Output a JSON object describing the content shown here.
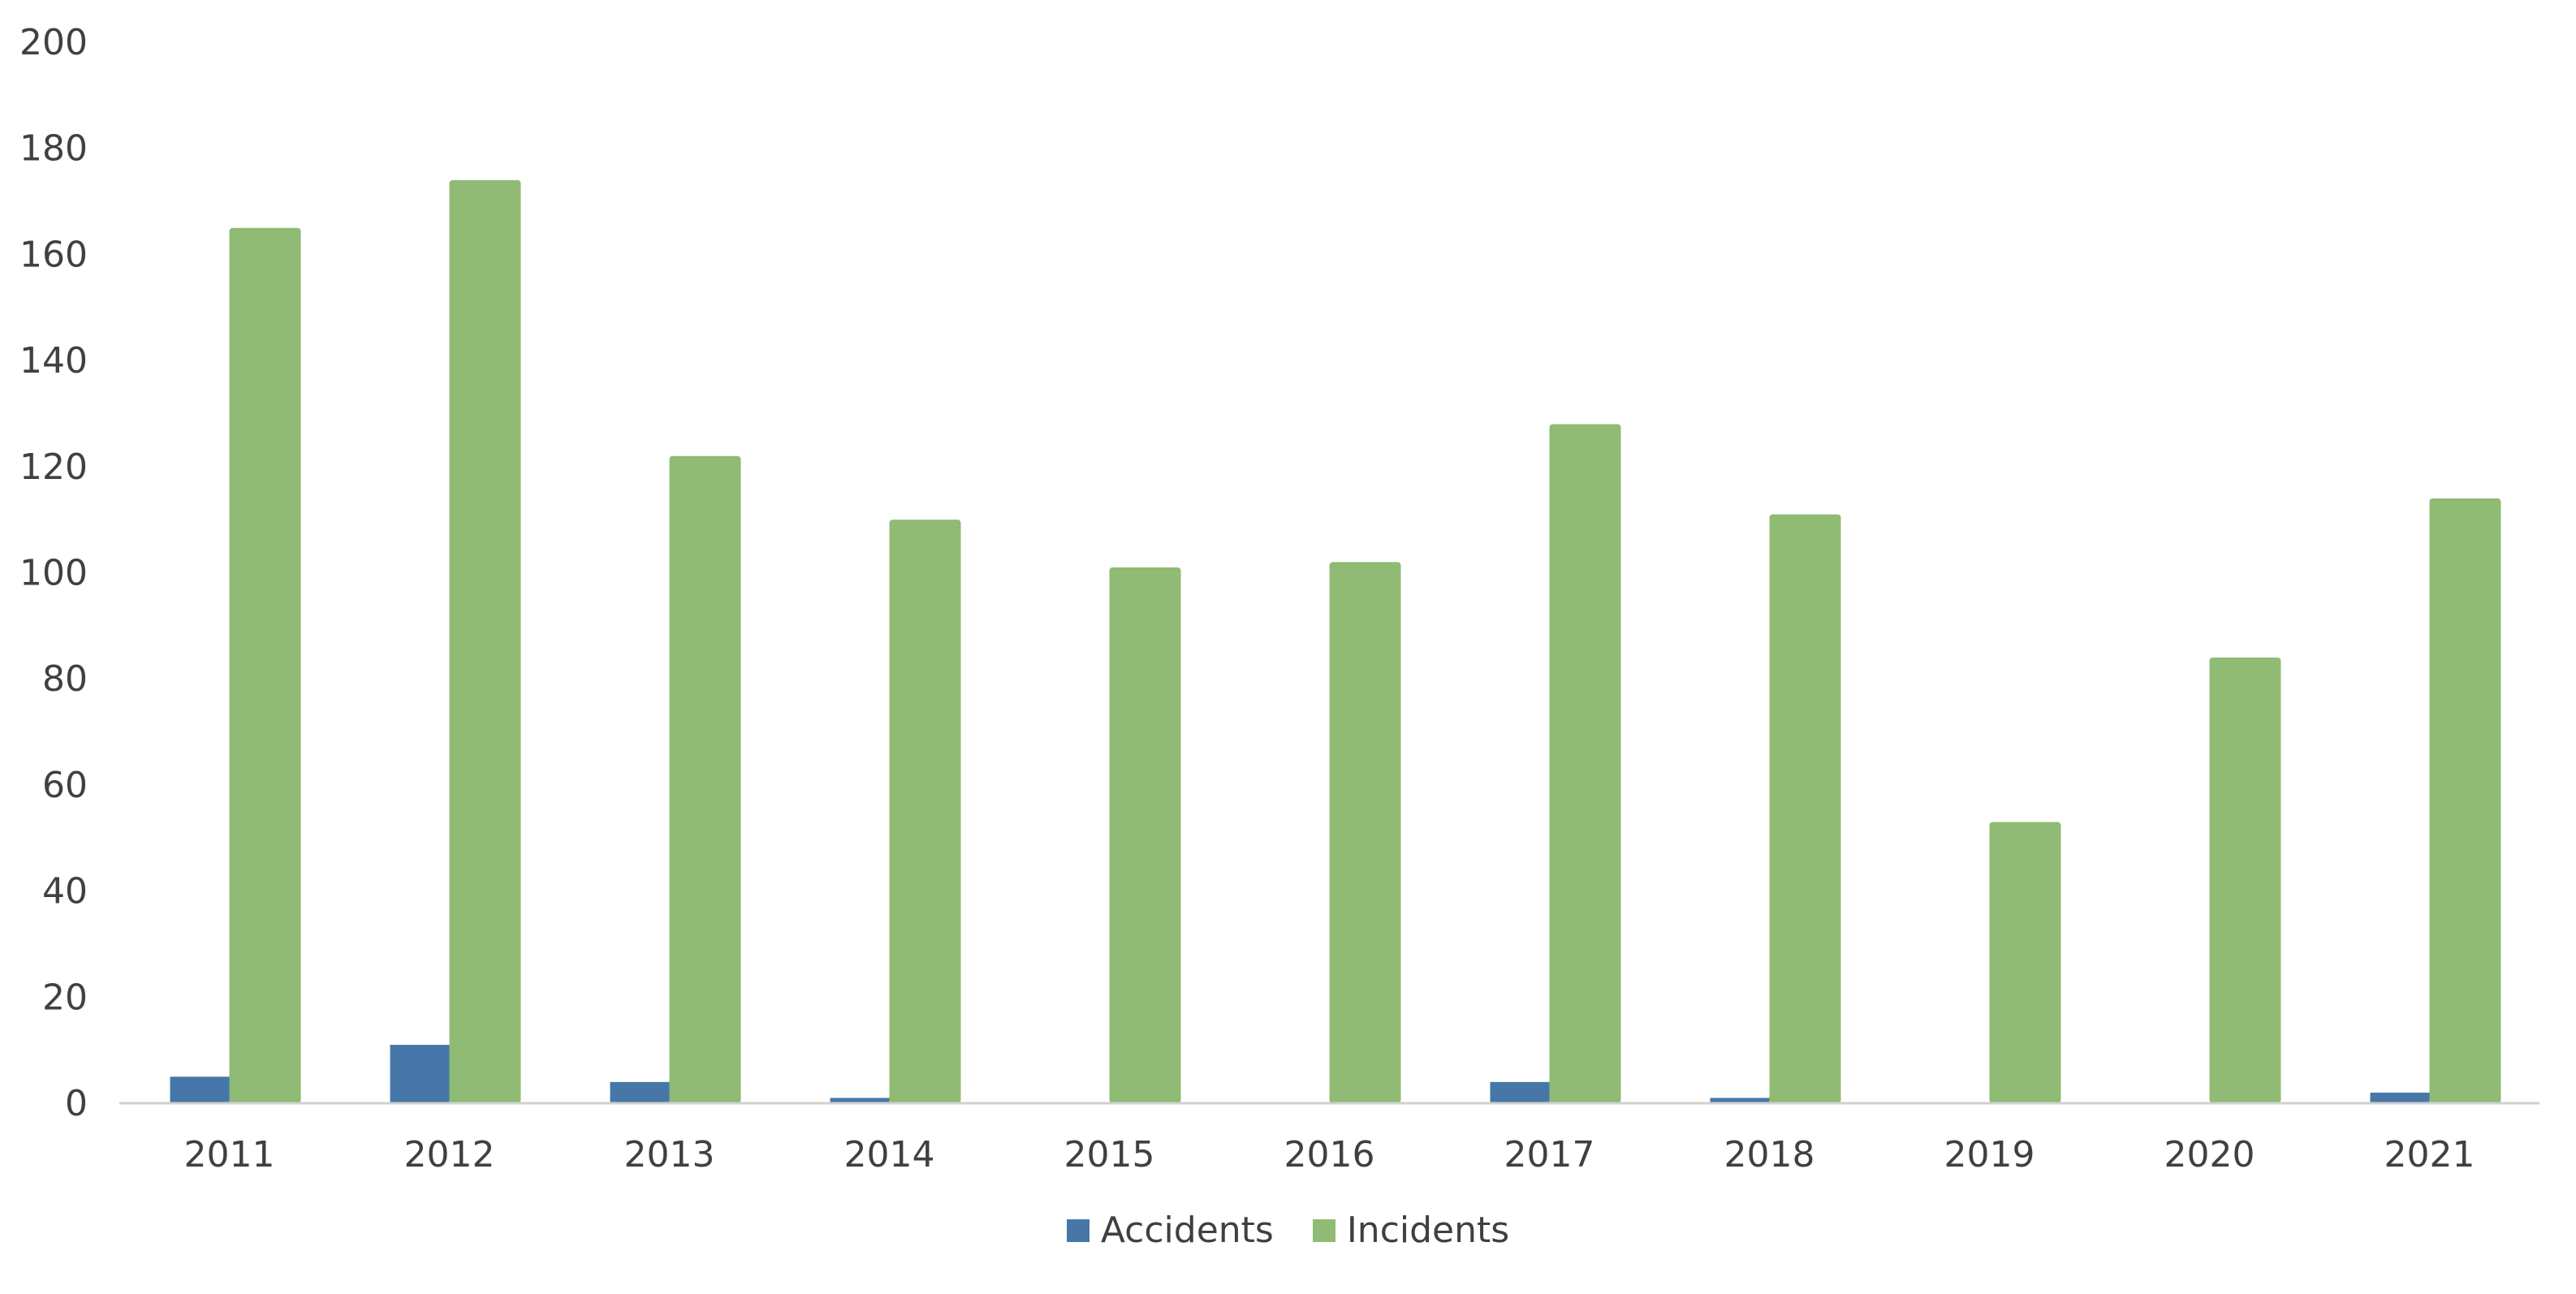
{
  "chart_data": {
    "type": "bar",
    "categories": [
      "2011",
      "2012",
      "2013",
      "2014",
      "2015",
      "2016",
      "2017",
      "2018",
      "2019",
      "2020",
      "2021"
    ],
    "series": [
      {
        "name": "Accidents",
        "color": "#4677a8",
        "values": [
          5,
          11,
          4,
          1,
          0,
          0,
          4,
          1,
          0,
          0,
          2
        ]
      },
      {
        "name": "Incidents",
        "color": "#8fbb74",
        "values": [
          165,
          174,
          122,
          110,
          101,
          102,
          128,
          111,
          53,
          84,
          114
        ]
      }
    ],
    "yticks": [
      "0",
      "20",
      "40",
      "60",
      "80",
      "100",
      "120",
      "140",
      "160",
      "180",
      "200"
    ],
    "ylim": [
      0,
      200
    ],
    "grid": false,
    "legend_position": "bottom"
  }
}
